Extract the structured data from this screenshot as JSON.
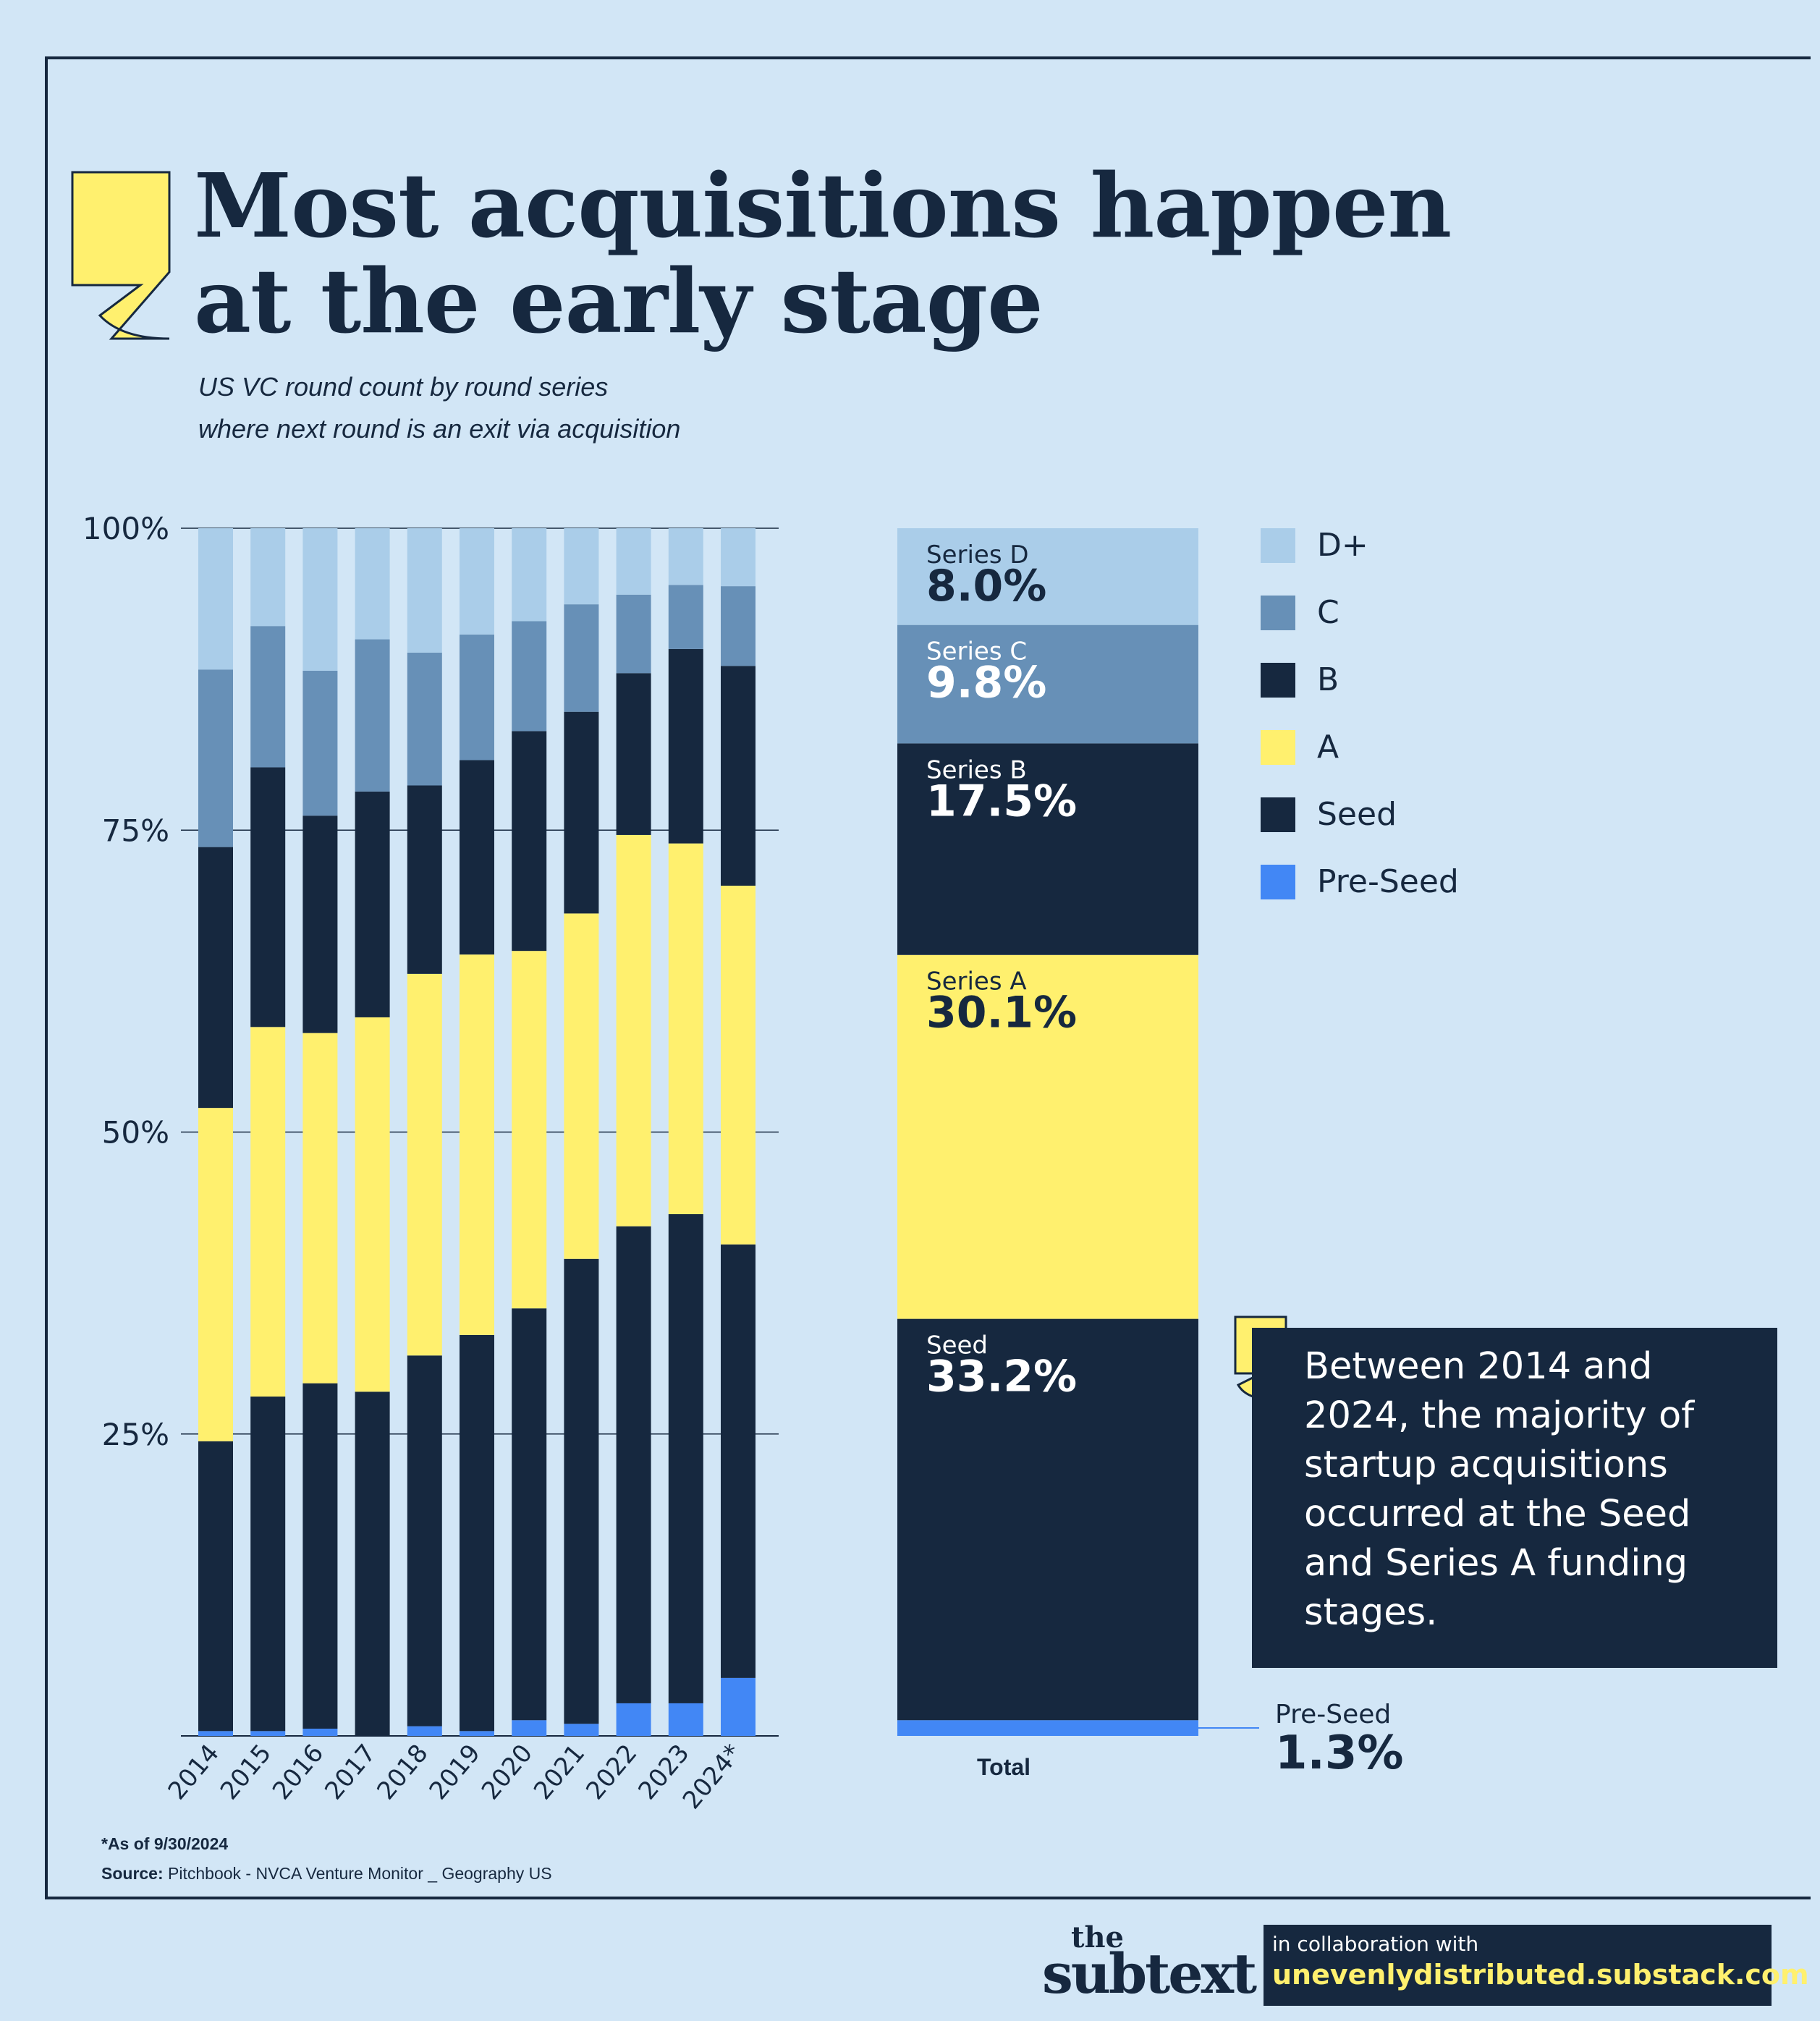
{
  "title": {
    "line1": "Most acquisitions happen",
    "line2": "at the early stage"
  },
  "subtitle": {
    "line1": "US VC round count by round series",
    "line2": "where next round is an exit via acquisition"
  },
  "colors": {
    "D+": "#aacde9",
    "C": "#6790b7",
    "B": "#16283f",
    "A": "#fff06e",
    "Seed": "#16283f",
    "Pre-Seed": "#4287f5",
    "background": "#d2e6f6",
    "ink": "#16283f"
  },
  "legend": [
    {
      "label": "D+",
      "color": "#aacde9"
    },
    {
      "label": "C",
      "color": "#6790b7"
    },
    {
      "label": "B",
      "color": "#16283f"
    },
    {
      "label": "A",
      "color": "#fff06e"
    },
    {
      "label": "Seed",
      "color": "#16283f"
    },
    {
      "label": "Pre-Seed",
      "color": "#4287f5"
    }
  ],
  "chart_data": [
    {
      "type": "bar",
      "stacked": true,
      "categories": [
        "2014",
        "2015",
        "2016",
        "2017",
        "2018",
        "2019",
        "2020",
        "2021",
        "2022",
        "2023",
        "2024*"
      ],
      "ylim": [
        0,
        100
      ],
      "yticks": [
        "100%",
        "75%",
        "50%",
        "25%"
      ],
      "ytick_values": [
        100,
        75,
        50,
        25
      ],
      "grid": true,
      "series": [
        {
          "name": "Pre-Seed",
          "values": [
            0.4,
            0.4,
            0.6,
            0.0,
            0.8,
            0.4,
            1.3,
            1.0,
            2.7,
            2.7,
            4.8
          ]
        },
        {
          "name": "Seed",
          "values": [
            24.0,
            27.7,
            28.6,
            28.5,
            30.7,
            32.8,
            34.1,
            38.5,
            39.5,
            40.5,
            35.9
          ]
        },
        {
          "name": "A",
          "values": [
            27.6,
            30.6,
            29.0,
            31.0,
            31.6,
            31.5,
            29.6,
            28.6,
            32.4,
            30.7,
            29.7
          ]
        },
        {
          "name": "B",
          "values": [
            21.6,
            21.5,
            18.0,
            18.7,
            15.6,
            16.1,
            18.2,
            16.7,
            13.4,
            16.1,
            18.2
          ]
        },
        {
          "name": "C",
          "values": [
            14.7,
            11.7,
            12.0,
            12.6,
            11.0,
            10.4,
            9.1,
            8.9,
            6.5,
            5.3,
            6.6
          ]
        },
        {
          "name": "D+",
          "values": [
            11.7,
            8.1,
            11.8,
            9.2,
            10.3,
            8.8,
            7.7,
            6.3,
            5.5,
            4.7,
            4.8
          ]
        }
      ]
    },
    {
      "type": "bar",
      "stacked": true,
      "categories": [
        "Total"
      ],
      "ylim": [
        0,
        100
      ],
      "series": [
        {
          "name": "Pre-Seed",
          "label": "Pre-Seed",
          "display": "1.3%",
          "values": [
            1.3
          ]
        },
        {
          "name": "Seed",
          "label": "Seed",
          "display": "33.2%",
          "values": [
            33.2
          ]
        },
        {
          "name": "A",
          "label": "Series A",
          "display": "30.1%",
          "values": [
            30.1
          ]
        },
        {
          "name": "B",
          "label": "Series B",
          "display": "17.5%",
          "values": [
            17.5
          ]
        },
        {
          "name": "C",
          "label": "Series C",
          "display": "9.8%",
          "values": [
            9.8
          ]
        },
        {
          "name": "D+",
          "label": "Series D",
          "display": "8.0%",
          "values": [
            8.0
          ]
        }
      ]
    }
  ],
  "callout": {
    "text": "Between 2014 and 2024, the majority of startup acquisitions occurred at the Seed and Series A funding stages."
  },
  "footnote": {
    "asof": "*As of 9/30/2024",
    "source_label": "Source:",
    "source_text": "Pitchbook - NVCA Venture Monitor _ Geography US"
  },
  "brand": {
    "the": "the",
    "name": "subtext",
    "collab_text": "in collaboration with",
    "collab_url": "unevenlydistributed.substack.com"
  }
}
